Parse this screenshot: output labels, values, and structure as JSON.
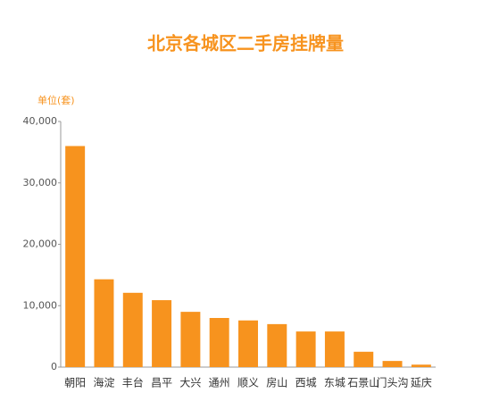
{
  "chart_data": {
    "type": "bar",
    "title": "北京各城区二手房挂牌量",
    "y_label": "单位(套)",
    "categories": [
      "朝阳",
      "海淀",
      "丰台",
      "昌平",
      "大兴",
      "通州",
      "顺义",
      "房山",
      "西城",
      "东城",
      "石景山",
      "门头沟",
      "延庆"
    ],
    "values": [
      36000,
      14300,
      12100,
      10900,
      9000,
      8000,
      7600,
      7000,
      5800,
      5800,
      2500,
      1000,
      400
    ],
    "color": "#f7931e",
    "ylim": [
      0,
      40000
    ],
    "yticks": [
      0,
      {
        "value": 10000,
        "label": "10,000"
      },
      {
        "value": 20000,
        "label": "20,000"
      },
      {
        "value": 30000,
        "label": "30,000"
      },
      {
        "value": 40000,
        "label": "40,000"
      }
    ],
    "grid": false
  }
}
